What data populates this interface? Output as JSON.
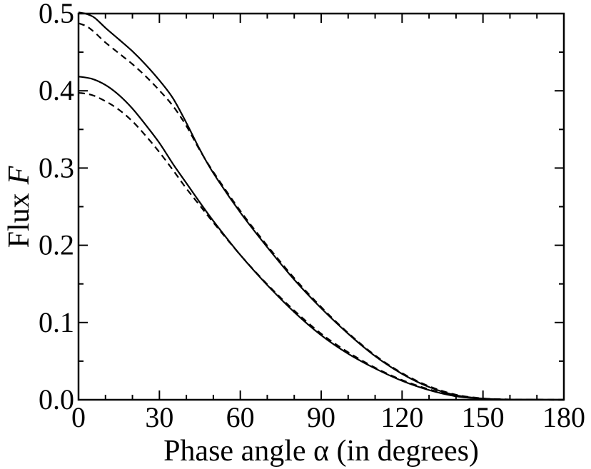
{
  "chart_data": {
    "type": "line",
    "xlabel": "Phase angle α (in degrees)",
    "ylabel_text": "Flux",
    "ylabel_symbol": "F",
    "xlim": [
      0,
      180
    ],
    "ylim": [
      0.0,
      0.5
    ],
    "x_major_ticks": [
      0,
      30,
      60,
      90,
      120,
      150,
      180
    ],
    "x_tick_labels": [
      "0",
      "30",
      "60",
      "90",
      "120",
      "150",
      "180"
    ],
    "x_minor_step": 10,
    "y_major_ticks": [
      0.0,
      0.1,
      0.2,
      0.3,
      0.4,
      0.5
    ],
    "y_tick_labels": [
      "0.0",
      "0.1",
      "0.2",
      "0.3",
      "0.4",
      "0.5"
    ],
    "y_minor_step": 0.05,
    "grid": false,
    "legend": "none",
    "series": [
      {
        "style": "solid",
        "color": "#000000",
        "x": [
          0,
          3,
          6,
          10,
          15,
          20,
          25,
          30,
          35,
          40,
          45,
          50,
          60,
          70,
          80,
          90,
          100,
          110,
          120,
          130,
          140,
          150,
          160,
          170,
          180
        ],
        "y": [
          0.5015,
          0.4995,
          0.4945,
          0.4815,
          0.4665,
          0.4512,
          0.4335,
          0.4135,
          0.3905,
          0.3585,
          0.324,
          0.2935,
          0.2425,
          0.1975,
          0.1555,
          0.1185,
          0.0855,
          0.0565,
          0.0335,
          0.0165,
          0.0058,
          0.0015,
          0.0003,
          0.0001,
          0.0
        ]
      },
      {
        "style": "dashed",
        "color": "#000000",
        "x": [
          0,
          3,
          6,
          10,
          15,
          20,
          25,
          30,
          35,
          40,
          45,
          50,
          60,
          70,
          80,
          90,
          100,
          110,
          120,
          130,
          140,
          150,
          160,
          170,
          180
        ],
        "y": [
          0.4875,
          0.4835,
          0.4755,
          0.4625,
          0.4485,
          0.4345,
          0.4185,
          0.4005,
          0.3805,
          0.3545,
          0.323,
          0.295,
          0.2445,
          0.1995,
          0.1575,
          0.12,
          0.0865,
          0.0575,
          0.0345,
          0.0175,
          0.0065,
          0.0018,
          0.0004,
          0.0001,
          0.0
        ]
      },
      {
        "style": "solid",
        "color": "#000000",
        "x": [
          0,
          5,
          10,
          15,
          20,
          25,
          30,
          35,
          40,
          45,
          50,
          60,
          70,
          80,
          90,
          100,
          110,
          120,
          130,
          140,
          150,
          160,
          170,
          180
        ],
        "y": [
          0.4185,
          0.4155,
          0.4075,
          0.3945,
          0.377,
          0.3555,
          0.3325,
          0.3055,
          0.2805,
          0.2555,
          0.2315,
          0.1875,
          0.1485,
          0.1135,
          0.0835,
          0.0595,
          0.0405,
          0.0245,
          0.0125,
          0.0045,
          0.0012,
          0.0003,
          0.0001,
          0.0
        ]
      },
      {
        "style": "dashed",
        "color": "#000000",
        "x": [
          0,
          5,
          10,
          15,
          20,
          25,
          30,
          35,
          40,
          45,
          50,
          60,
          70,
          80,
          90,
          100,
          110,
          120,
          130,
          140,
          150,
          160,
          170,
          180
        ],
        "y": [
          0.3975,
          0.3945,
          0.3865,
          0.3755,
          0.3605,
          0.3415,
          0.3205,
          0.2975,
          0.2735,
          0.2515,
          0.2295,
          0.1875,
          0.1495,
          0.1155,
          0.0855,
          0.0615,
          0.0415,
          0.0255,
          0.0135,
          0.0052,
          0.0015,
          0.0004,
          0.0001,
          0.0
        ]
      }
    ]
  }
}
